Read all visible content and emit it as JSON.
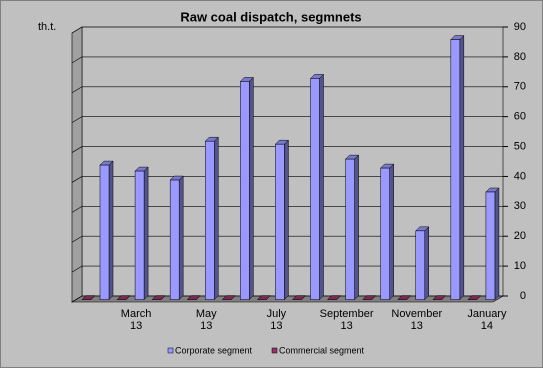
{
  "chart_data": {
    "type": "bar3d",
    "title": "Raw coal dispatch, segmnets",
    "y_label": "th.t.",
    "categories": [
      null,
      "March 13",
      null,
      "May 13",
      null,
      "July 13",
      null,
      "September 13",
      null,
      "November 13",
      null,
      "January 14"
    ],
    "series": [
      {
        "name": "Commercial segment",
        "color": "#993366",
        "values": [
          0,
          0,
          0,
          0,
          0,
          0,
          0,
          0,
          0,
          0,
          0,
          0
        ]
      },
      {
        "name": "Corporate segment",
        "color": "#9999ff",
        "values": [
          45,
          43,
          40,
          53,
          73,
          52,
          74,
          47,
          44,
          23,
          87,
          36
        ]
      }
    ],
    "ylim": [
      0,
      90
    ],
    "yticks": [
      0,
      10,
      20,
      30,
      40,
      50,
      60,
      70,
      80,
      90
    ],
    "grid": true
  }
}
